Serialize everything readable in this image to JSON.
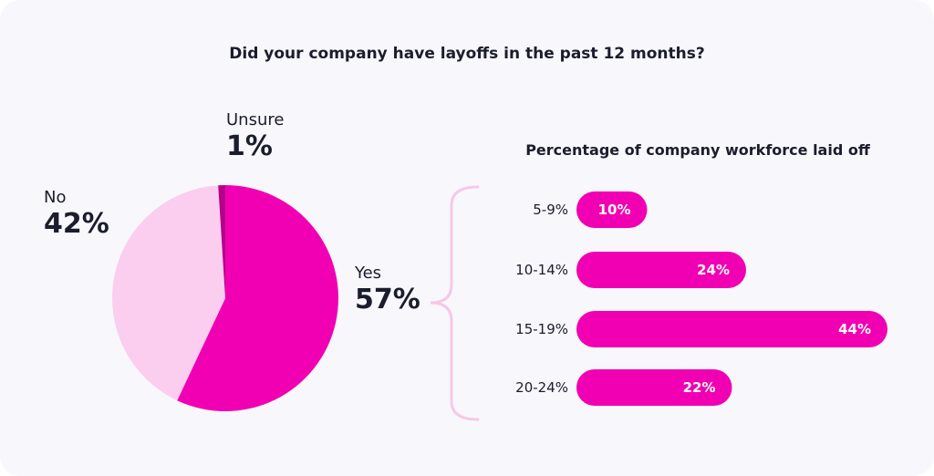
{
  "colors": {
    "background": "#f8f7fc",
    "accent": "#f100b3",
    "no_slice": "#fbcdee",
    "unsure_slice": "#b5008a",
    "brace": "#f6c8e8",
    "text": "#1b1d2c",
    "bar_label": "#ffffff"
  },
  "chart_data": [
    {
      "type": "pie",
      "title": "Did your company have layoffs in the past 12 months?",
      "slices": [
        {
          "label": "Yes",
          "value": 57,
          "display": "57%"
        },
        {
          "label": "No",
          "value": 42,
          "display": "42%"
        },
        {
          "label": "Unsure",
          "value": 1,
          "display": "1%"
        }
      ]
    },
    {
      "type": "bar",
      "orientation": "horizontal",
      "title": "Percentage of company workforce laid off",
      "categories": [
        "5-9%",
        "10-14%",
        "15-19%",
        "20-24%"
      ],
      "values": [
        10,
        24,
        44,
        22
      ],
      "value_labels": [
        "10%",
        "24%",
        "44%",
        "22%"
      ],
      "xlim": [
        0,
        44
      ],
      "grid": false
    }
  ]
}
